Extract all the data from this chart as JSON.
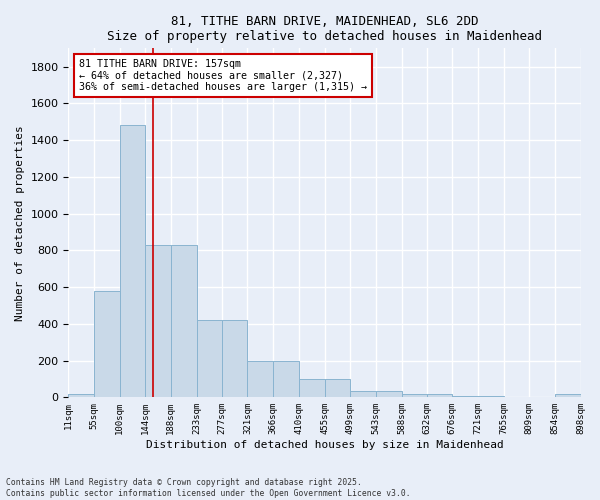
{
  "title_line1": "81, TITHE BARN DRIVE, MAIDENHEAD, SL6 2DD",
  "title_line2": "Size of property relative to detached houses in Maidenhead",
  "xlabel": "Distribution of detached houses by size in Maidenhead",
  "ylabel": "Number of detached properties",
  "bin_edges": [
    11,
    55,
    100,
    144,
    188,
    233,
    277,
    321,
    366,
    410,
    455,
    499,
    543,
    588,
    632,
    676,
    721,
    765,
    809,
    854,
    898
  ],
  "bar_heights": [
    20,
    580,
    1480,
    830,
    830,
    420,
    420,
    200,
    200,
    100,
    100,
    35,
    35,
    20,
    20,
    5,
    5,
    0,
    0,
    20
  ],
  "bar_color": "#c9d9e8",
  "bar_edgecolor": "#8ab4d0",
  "tick_labels": [
    "11sqm",
    "55sqm",
    "100sqm",
    "144sqm",
    "188sqm",
    "233sqm",
    "277sqm",
    "321sqm",
    "366sqm",
    "410sqm",
    "455sqm",
    "499sqm",
    "543sqm",
    "588sqm",
    "632sqm",
    "676sqm",
    "721sqm",
    "765sqm",
    "809sqm",
    "854sqm",
    "898sqm"
  ],
  "ylim": [
    0,
    1900
  ],
  "yticks": [
    0,
    200,
    400,
    600,
    800,
    1000,
    1200,
    1400,
    1600,
    1800
  ],
  "property_line_x": 157,
  "property_line_color": "#cc0000",
  "annotation_text": "81 TITHE BARN DRIVE: 157sqm\n← 64% of detached houses are smaller (2,327)\n36% of semi-detached houses are larger (1,315) →",
  "annotation_box_color": "#ffffff",
  "annotation_box_edgecolor": "#cc0000",
  "background_color": "#e8eef8",
  "grid_color": "#ffffff",
  "footer_text": "Contains HM Land Registry data © Crown copyright and database right 2025.\nContains public sector information licensed under the Open Government Licence v3.0.",
  "fig_width": 6.0,
  "fig_height": 5.0,
  "dpi": 100
}
